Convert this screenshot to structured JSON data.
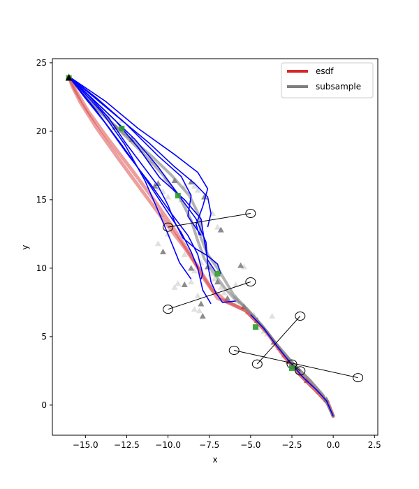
{
  "chart_data": {
    "type": "line",
    "title": "",
    "xlabel": "x",
    "ylabel": "y",
    "xlim": [
      -17.0,
      2.7
    ],
    "ylim": [
      -2.2,
      25.3
    ],
    "xticks": [
      -15.0,
      -12.5,
      -10.0,
      -7.5,
      -5.0,
      -2.5,
      0.0,
      2.5
    ],
    "xtick_labels": [
      "−15.0",
      "−12.5",
      "−10.0",
      "−7.5",
      "−5.0",
      "−2.5",
      "0.0",
      "2.5"
    ],
    "yticks": [
      0,
      5,
      10,
      15,
      20,
      25
    ],
    "ytick_labels": [
      "0",
      "5",
      "10",
      "15",
      "20",
      "25"
    ],
    "grid": false,
    "legend": {
      "position": "top-right",
      "entries": [
        {
          "name": "esdf",
          "color": "#d62728"
        },
        {
          "name": "subsample",
          "color": "#7f7f7f"
        }
      ]
    },
    "colors": {
      "esdf": "#d62728",
      "subsample": "#7f7f7f",
      "candidates": "#0000ff",
      "waypoints": "#2ca02c",
      "obstacles": "#000000"
    },
    "series": [
      {
        "name": "esdf",
        "color": "#d62728",
        "points": [
          [
            -16.0,
            24.0
          ],
          [
            -15.8,
            23.3
          ],
          [
            -15.3,
            22.1
          ],
          [
            -14.3,
            20.2
          ],
          [
            -13.0,
            18.0
          ],
          [
            -11.6,
            15.7
          ],
          [
            -10.2,
            13.4
          ],
          [
            -9.0,
            11.5
          ],
          [
            -8.1,
            9.9
          ],
          [
            -7.3,
            8.4
          ],
          [
            -6.5,
            7.6
          ],
          [
            -5.3,
            6.9
          ],
          [
            -4.0,
            5.3
          ],
          [
            -3.0,
            3.6
          ],
          [
            -2.0,
            2.2
          ],
          [
            -1.0,
            1.0
          ],
          [
            -0.3,
            0.1
          ],
          [
            0.0,
            -0.8
          ]
        ]
      },
      {
        "name": "esdf",
        "color": "#d62728",
        "points": [
          [
            -16.0,
            24.0
          ],
          [
            -15.6,
            23.0
          ],
          [
            -14.8,
            21.4
          ],
          [
            -13.6,
            19.4
          ],
          [
            -12.2,
            17.2
          ],
          [
            -10.8,
            14.9
          ],
          [
            -9.6,
            12.8
          ],
          [
            -8.6,
            10.9
          ],
          [
            -7.8,
            9.2
          ],
          [
            -7.0,
            7.8
          ],
          [
            -6.2,
            7.4
          ],
          [
            -5.3,
            6.9
          ],
          [
            -4.0,
            5.3
          ],
          [
            -3.0,
            3.6
          ],
          [
            -2.0,
            2.2
          ],
          [
            -1.0,
            1.0
          ],
          [
            -0.3,
            0.1
          ],
          [
            0.0,
            -0.8
          ]
        ]
      },
      {
        "name": "subsample",
        "color": "#7f7f7f",
        "points": [
          [
            -16.0,
            24.0
          ],
          [
            -14.8,
            22.2
          ],
          [
            -13.6,
            20.8
          ],
          [
            -12.4,
            19.6
          ],
          [
            -11.0,
            18.2
          ],
          [
            -9.8,
            16.8
          ],
          [
            -8.7,
            15.3
          ],
          [
            -8.1,
            13.8
          ],
          [
            -8.0,
            12.2
          ],
          [
            -7.6,
            11.0
          ],
          [
            -7.0,
            10.0
          ],
          [
            -6.5,
            9.0
          ],
          [
            -6.0,
            8.0
          ],
          [
            -5.2,
            7.0
          ],
          [
            -4.3,
            5.8
          ],
          [
            -3.4,
            4.4
          ],
          [
            -2.4,
            3.0
          ],
          [
            -1.4,
            1.8
          ],
          [
            -0.6,
            0.7
          ],
          [
            0.0,
            -0.8
          ]
        ]
      },
      {
        "name": "subsample",
        "color": "#7f7f7f",
        "points": [
          [
            -16.0,
            24.0
          ],
          [
            -15.0,
            22.6
          ],
          [
            -13.9,
            21.2
          ],
          [
            -12.8,
            19.9
          ],
          [
            -11.5,
            18.4
          ],
          [
            -10.3,
            16.8
          ],
          [
            -9.3,
            15.2
          ],
          [
            -8.6,
            13.5
          ],
          [
            -8.2,
            12.0
          ],
          [
            -7.8,
            10.7
          ],
          [
            -7.2,
            9.6
          ],
          [
            -6.6,
            8.6
          ],
          [
            -6.0,
            7.8
          ],
          [
            -5.2,
            7.0
          ],
          [
            -4.3,
            5.8
          ],
          [
            -3.4,
            4.4
          ],
          [
            -2.4,
            3.0
          ],
          [
            -1.4,
            1.8
          ],
          [
            -0.6,
            0.7
          ],
          [
            0.0,
            -0.8
          ]
        ]
      },
      {
        "name": "",
        "color": "#0000ff",
        "points": [
          [
            -16.0,
            24.0
          ],
          [
            -13.8,
            22.2
          ],
          [
            -11.8,
            20.2
          ],
          [
            -9.6,
            18.3
          ],
          [
            -8.2,
            17.0
          ],
          [
            -7.6,
            15.8
          ],
          [
            -7.9,
            14.5
          ],
          [
            -8.3,
            13.2
          ],
          [
            -8.1,
            12.4
          ]
        ]
      },
      {
        "name": "",
        "color": "#0000ff",
        "points": [
          [
            -16.0,
            24.0
          ],
          [
            -14.3,
            22.4
          ],
          [
            -12.6,
            20.6
          ],
          [
            -10.6,
            18.2
          ],
          [
            -9.2,
            16.7
          ],
          [
            -8.6,
            15.3
          ],
          [
            -8.8,
            13.8
          ],
          [
            -8.0,
            12.4
          ]
        ]
      },
      {
        "name": "",
        "color": "#0000ff",
        "points": [
          [
            -16.0,
            24.0
          ],
          [
            -14.0,
            21.4
          ],
          [
            -12.6,
            19.0
          ],
          [
            -11.4,
            16.4
          ],
          [
            -10.6,
            14.2
          ],
          [
            -9.9,
            12.2
          ],
          [
            -9.3,
            10.4
          ],
          [
            -8.6,
            9.2
          ]
        ]
      },
      {
        "name": "",
        "color": "#0000ff",
        "points": [
          [
            -16.0,
            24.0
          ],
          [
            -14.6,
            22.4
          ],
          [
            -13.2,
            20.8
          ],
          [
            -11.8,
            18.8
          ],
          [
            -10.5,
            16.6
          ],
          [
            -9.0,
            15.0
          ],
          [
            -8.0,
            13.6
          ],
          [
            -7.8,
            12.0
          ],
          [
            -7.6,
            10.6
          ],
          [
            -7.1,
            9.7
          ]
        ]
      },
      {
        "name": "",
        "color": "#0000ff",
        "points": [
          [
            -16.0,
            24.0
          ],
          [
            -13.9,
            21.6
          ],
          [
            -12.0,
            19.4
          ],
          [
            -10.6,
            17.4
          ],
          [
            -9.4,
            15.4
          ],
          [
            -8.3,
            13.6
          ],
          [
            -7.7,
            11.9
          ],
          [
            -7.6,
            10.3
          ],
          [
            -7.4,
            9.0
          ],
          [
            -7.1,
            8.2
          ],
          [
            -6.7,
            7.5
          ],
          [
            -5.9,
            7.6
          ]
        ]
      },
      {
        "name": "",
        "color": "#0000ff",
        "points": [
          [
            -16.0,
            24.0
          ],
          [
            -14.4,
            21.6
          ],
          [
            -12.8,
            19.0
          ],
          [
            -11.4,
            16.6
          ],
          [
            -10.2,
            14.4
          ],
          [
            -9.2,
            12.6
          ],
          [
            -8.6,
            11.2
          ],
          [
            -8.2,
            10.0
          ],
          [
            -7.9,
            8.4
          ],
          [
            -7.4,
            7.4
          ]
        ]
      },
      {
        "name": "",
        "color": "#0000ff",
        "points": [
          [
            -16.0,
            24.0
          ],
          [
            -15.0,
            22.4
          ],
          [
            -13.8,
            20.6
          ],
          [
            -12.5,
            18.4
          ],
          [
            -11.1,
            16.2
          ],
          [
            -9.8,
            14.0
          ],
          [
            -8.8,
            12.4
          ],
          [
            -8.2,
            11.0
          ],
          [
            -7.9,
            9.6
          ],
          [
            -8.0,
            9.2
          ]
        ]
      },
      {
        "name": "",
        "color": "#0000ff",
        "points": [
          [
            -16.0,
            24.0
          ],
          [
            -14.8,
            22.6
          ],
          [
            -13.6,
            21.0
          ],
          [
            -12.6,
            19.2
          ],
          [
            -11.6,
            17.6
          ],
          [
            -10.6,
            16.0
          ],
          [
            -10.0,
            14.6
          ],
          [
            -9.6,
            13.4
          ],
          [
            -9.1,
            12.2
          ],
          [
            -8.3,
            11.4
          ],
          [
            -7.6,
            10.9
          ],
          [
            -7.0,
            10.3
          ],
          [
            -6.8,
            9.6
          ]
        ]
      },
      {
        "name": "",
        "color": "#0000ff",
        "points": [
          [
            -5.0,
            6.6
          ],
          [
            -4.2,
            5.6
          ],
          [
            -3.4,
            4.3
          ],
          [
            -2.6,
            3.1
          ],
          [
            -1.8,
            2.0
          ],
          [
            -1.0,
            1.1
          ],
          [
            -0.4,
            0.3
          ],
          [
            0.0,
            -0.8
          ]
        ]
      },
      {
        "name": "",
        "color": "#0000ff",
        "points": [
          [
            -16.0,
            24.0
          ],
          [
            -14.6,
            22.6
          ],
          [
            -13.0,
            21.0
          ],
          [
            -11.2,
            19.2
          ],
          [
            -9.6,
            17.4
          ],
          [
            -8.4,
            16.2
          ],
          [
            -7.6,
            15.2
          ],
          [
            -7.4,
            14.0
          ],
          [
            -7.6,
            13.0
          ]
        ]
      }
    ],
    "triangles": [
      [
        -16.0,
        24.0
      ],
      [
        -14.0,
        21.7
      ],
      [
        -13.6,
        21.0
      ],
      [
        -13.2,
        20.3
      ],
      [
        -12.8,
        20.8
      ],
      [
        -12.6,
        19.9
      ],
      [
        -12.2,
        19.4
      ],
      [
        -11.6,
        18.6
      ],
      [
        -11.0,
        17.8
      ],
      [
        -10.6,
        16.2
      ],
      [
        -10.3,
        15.6
      ],
      [
        -10.0,
        15.2
      ],
      [
        -9.6,
        16.4
      ],
      [
        -9.2,
        15.0
      ],
      [
        -9.0,
        16.0
      ],
      [
        -8.6,
        16.3
      ],
      [
        -8.4,
        16.0
      ],
      [
        -8.2,
        15.7
      ],
      [
        -7.8,
        15.2
      ],
      [
        -7.3,
        14.0
      ],
      [
        -7.0,
        13.0
      ],
      [
        -6.8,
        12.8
      ],
      [
        -10.2,
        16.5
      ],
      [
        -10.6,
        15.8
      ],
      [
        -10.8,
        16.0
      ],
      [
        -10.4,
        13.9
      ],
      [
        -10.6,
        11.8
      ],
      [
        -10.3,
        11.2
      ],
      [
        -10.0,
        12.5
      ],
      [
        -9.0,
        11.0
      ],
      [
        -8.6,
        10.0
      ],
      [
        -8.4,
        9.8
      ],
      [
        -8.0,
        10.4
      ],
      [
        -7.6,
        10.1
      ],
      [
        -7.4,
        9.6
      ],
      [
        -7.2,
        9.2
      ],
      [
        -7.0,
        9.0
      ],
      [
        -6.8,
        8.6
      ],
      [
        -6.6,
        8.2
      ],
      [
        -6.4,
        7.8
      ],
      [
        -5.9,
        8.8
      ],
      [
        -5.4,
        10.1
      ],
      [
        -5.6,
        10.2
      ],
      [
        -8.2,
        8.0
      ],
      [
        -8.6,
        9.0
      ],
      [
        -9.0,
        8.8
      ],
      [
        -9.4,
        8.9
      ],
      [
        -9.6,
        8.6
      ],
      [
        -8.0,
        7.4
      ],
      [
        -8.4,
        7.0
      ],
      [
        -8.1,
        6.9
      ],
      [
        -7.9,
        6.5
      ],
      [
        -5.9,
        7.9
      ],
      [
        -5.8,
        7.6
      ],
      [
        -5.4,
        7.2
      ],
      [
        -5.2,
        6.8
      ],
      [
        -4.8,
        6.6
      ],
      [
        -4.6,
        6.2
      ],
      [
        -4.2,
        5.4
      ],
      [
        -4.0,
        5.2
      ],
      [
        -3.6,
        4.6
      ],
      [
        -3.3,
        4.2
      ],
      [
        -3.0,
        3.6
      ],
      [
        -2.7,
        3.2
      ],
      [
        -2.5,
        2.9
      ],
      [
        -2.0,
        2.4
      ],
      [
        -1.6,
        1.8
      ],
      [
        -1.3,
        1.5
      ],
      [
        -0.9,
        1.0
      ],
      [
        -0.4,
        0.4
      ],
      [
        -3.7,
        6.5
      ],
      [
        -4.6,
        5.7
      ]
    ],
    "waypoints": [
      [
        -16.0,
        23.9
      ],
      [
        -12.8,
        20.2
      ],
      [
        -9.4,
        15.3
      ],
      [
        -7.0,
        9.6
      ],
      [
        -4.7,
        5.7
      ],
      [
        -2.5,
        2.7
      ]
    ],
    "start_marker": [
      -16.0,
      23.9
    ],
    "tether_lines": [
      {
        "from": [
          -10.0,
          13.0
        ],
        "to": [
          -5.0,
          14.0
        ]
      },
      {
        "from": [
          -10.0,
          7.0
        ],
        "to": [
          -5.0,
          9.0
        ]
      },
      {
        "from": [
          -4.6,
          3.0
        ],
        "to": [
          -2.0,
          6.5
        ]
      },
      {
        "from": [
          -6.0,
          4.0
        ],
        "to": [
          1.5,
          2.0
        ]
      },
      {
        "from": [
          -2.5,
          3.0
        ],
        "to": [
          -2.0,
          2.5
        ]
      }
    ],
    "circles": [
      [
        -10.0,
        13.0
      ],
      [
        -5.0,
        14.0
      ],
      [
        -10.0,
        7.0
      ],
      [
        -5.0,
        9.0
      ],
      [
        -4.6,
        3.0
      ],
      [
        -2.0,
        6.5
      ],
      [
        -6.0,
        4.0
      ],
      [
        1.5,
        2.0
      ],
      [
        -2.5,
        3.0
      ],
      [
        -2.0,
        2.5
      ]
    ]
  }
}
